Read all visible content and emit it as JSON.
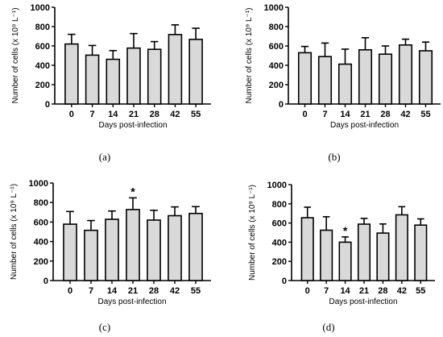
{
  "figure": {
    "panels": [
      {
        "id": "a",
        "label": "(a)"
      },
      {
        "id": "b",
        "label": "(b)"
      },
      {
        "id": "c",
        "label": "(c)"
      },
      {
        "id": "d",
        "label": "(d)"
      }
    ]
  },
  "chart_data": [
    {
      "type": "bar",
      "panel_label": "(a)",
      "categories": [
        "0",
        "7",
        "14",
        "21",
        "28",
        "42",
        "55"
      ],
      "values": [
        620,
        505,
        462,
        578,
        565,
        718,
        668
      ],
      "errors": [
        100,
        100,
        90,
        150,
        80,
        100,
        115
      ],
      "significance": [
        "",
        "",
        "",
        "",
        "",
        "",
        ""
      ],
      "xlabel": "Days post-infection",
      "ylabel": "Number of cells (x 10⁹ L⁻¹)",
      "ylim": [
        0,
        1000
      ],
      "yticks": [
        0,
        200,
        400,
        600,
        800,
        1000
      ],
      "bar_color": "#d9d9d9",
      "grid": false
    },
    {
      "type": "bar",
      "panel_label": "(b)",
      "categories": [
        "0",
        "7",
        "14",
        "21",
        "28",
        "42",
        "55"
      ],
      "values": [
        530,
        490,
        412,
        560,
        515,
        610,
        550
      ],
      "errors": [
        65,
        140,
        155,
        125,
        85,
        60,
        90
      ],
      "significance": [
        "",
        "",
        "",
        "",
        "",
        "",
        ""
      ],
      "xlabel": "Days post-infection",
      "ylabel": "Number of cells (x 10⁹ L⁻¹)",
      "ylim": [
        0,
        1000
      ],
      "yticks": [
        0,
        200,
        400,
        600,
        800,
        1000
      ],
      "bar_color": "#d9d9d9",
      "grid": false
    },
    {
      "type": "bar",
      "panel_label": "(c)",
      "categories": [
        "0",
        "7",
        "14",
        "21",
        "28",
        "42",
        "55"
      ],
      "values": [
        578,
        515,
        628,
        728,
        620,
        665,
        688
      ],
      "errors": [
        130,
        100,
        85,
        120,
        100,
        90,
        70
      ],
      "significance": [
        "",
        "",
        "",
        "*",
        "",
        "",
        ""
      ],
      "xlabel": "Days post-infection",
      "ylabel": "Number of cells (x 10⁹ L⁻¹)",
      "ylim": [
        0,
        1000
      ],
      "yticks": [
        0,
        200,
        400,
        600,
        800,
        1000
      ],
      "bar_color": "#d9d9d9",
      "grid": false
    },
    {
      "type": "bar",
      "panel_label": "(d)",
      "categories": [
        "0",
        "7",
        "14",
        "21",
        "28",
        "42",
        "55"
      ],
      "values": [
        655,
        525,
        400,
        588,
        495,
        685,
        578
      ],
      "errors": [
        110,
        140,
        55,
        60,
        95,
        85,
        65
      ],
      "significance": [
        "",
        "",
        "*",
        "",
        "",
        "",
        ""
      ],
      "xlabel": "Days post-infection",
      "ylabel": "Number of cells (x 10⁹ L⁻¹)",
      "ylim": [
        0,
        1000
      ],
      "yticks": [
        0,
        200,
        400,
        600,
        800,
        1000
      ],
      "bar_color": "#d9d9d9",
      "grid": false
    }
  ]
}
